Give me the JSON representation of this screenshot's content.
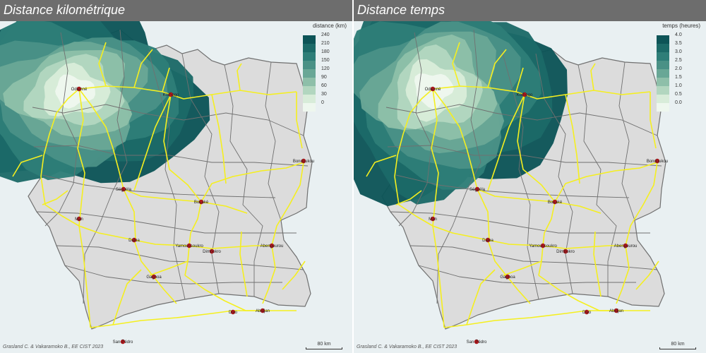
{
  "panels": [
    {
      "title": "Distance kilométrique",
      "legend": {
        "title": "distance (km)",
        "ticks": [
          "240",
          "210",
          "180",
          "150",
          "120",
          "90",
          "60",
          "30",
          "0"
        ],
        "colors": [
          "#0d5457",
          "#1c6a68",
          "#2e7e78",
          "#4a9186",
          "#69a796",
          "#8ebfa9",
          "#b2d6bf",
          "#d8ecd9",
          "#eef7ee"
        ]
      },
      "origin": "Odienné"
    },
    {
      "title": "Distance temps",
      "legend": {
        "title": "temps (heures)",
        "ticks": [
          "4.0",
          "3.5",
          "3.0",
          "2.5",
          "2.0",
          "1.5",
          "1.0",
          "0.5",
          "0.0"
        ],
        "colors": [
          "#0d5457",
          "#1c6a68",
          "#2e7e78",
          "#4a9186",
          "#69a796",
          "#8ebfa9",
          "#b2d6bf",
          "#d8ecd9",
          "#eef7ee"
        ]
      },
      "origin": "Odienné"
    }
  ],
  "cities": [
    {
      "name": "Odienné"
    },
    {
      "name": "Korhogo"
    },
    {
      "name": "Séguéla"
    },
    {
      "name": "Bondoukou"
    },
    {
      "name": "Bouaké"
    },
    {
      "name": "Man"
    },
    {
      "name": "Daloa"
    },
    {
      "name": "Yamoussoukro"
    },
    {
      "name": "Dimbokro"
    },
    {
      "name": "Abengourou"
    },
    {
      "name": "Gagnoa"
    },
    {
      "name": "Divo"
    },
    {
      "name": "Abidjan"
    },
    {
      "name": "San-Pédro"
    }
  ],
  "credit": "Grasland C. & Vakaramoko B., EE CIST 2023",
  "scale_label": "80 km",
  "colors": {
    "title_bar": "#6d6d6d",
    "sea": "#e9f0f2",
    "land": "#dcdcdc",
    "border": "#707070",
    "roads": "#f5ef1f",
    "city": "#d0141a"
  }
}
